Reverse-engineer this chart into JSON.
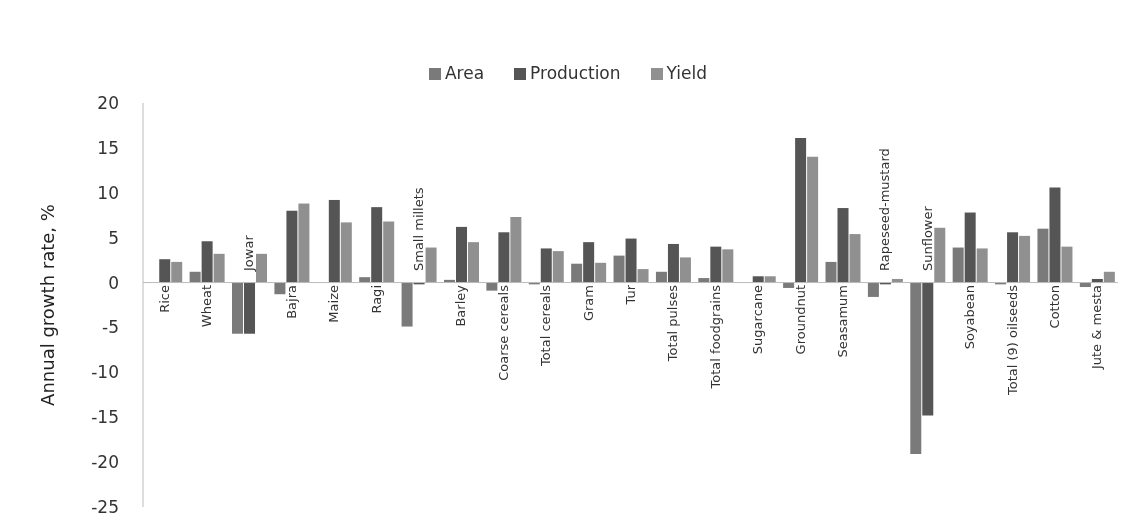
{
  "chart_data": {
    "type": "bar",
    "ylabel": "Annual growth rate, %",
    "categories": [
      "Rice",
      "Wheat",
      "Jowar",
      "Bajra",
      "Maize",
      "Ragi",
      "Small millets",
      "Barley",
      "Coarse cereals",
      "Total cereals",
      "Gram",
      "Tur",
      "Total pulses",
      "Total foodgrains",
      "Sugarcane",
      "Groundnut",
      "Seasamum",
      "Rapeseed-mustard",
      "Sunflower",
      "Soyabean",
      "Total (9) oilseeds",
      "Cotton",
      "Jute & mesta"
    ],
    "series": [
      {
        "name": "Area",
        "color": "#7a7a7a",
        "values": [
          0,
          1.2,
          -5.7,
          -1.3,
          0,
          0.6,
          -4.9,
          0.3,
          -0.9,
          -0.2,
          2.1,
          3.0,
          1.2,
          0.5,
          0,
          -0.6,
          2.3,
          -1.6,
          -19.1,
          3.9,
          -0.2,
          6.0,
          -0.5
        ]
      },
      {
        "name": "Production",
        "color": "#555555",
        "values": [
          2.6,
          4.6,
          -5.7,
          8.0,
          9.2,
          8.4,
          -0.2,
          6.2,
          5.6,
          3.8,
          4.5,
          4.9,
          4.3,
          4.0,
          0.7,
          16.1,
          8.3,
          -0.2,
          -14.8,
          7.8,
          5.6,
          10.6,
          0.4
        ]
      },
      {
        "name": "Yield",
        "color": "#909090",
        "values": [
          2.3,
          3.2,
          3.2,
          8.8,
          6.7,
          6.8,
          3.9,
          4.5,
          7.3,
          3.5,
          2.2,
          1.5,
          2.8,
          3.7,
          0.7,
          14.0,
          5.4,
          0.4,
          6.1,
          3.8,
          5.2,
          4.0,
          1.2
        ]
      }
    ],
    "ylim": [
      -25,
      20
    ],
    "yticks": [
      -25,
      -20,
      -15,
      -10,
      -5,
      0,
      5,
      10,
      15,
      20
    ],
    "grid": false,
    "legend": "top"
  }
}
